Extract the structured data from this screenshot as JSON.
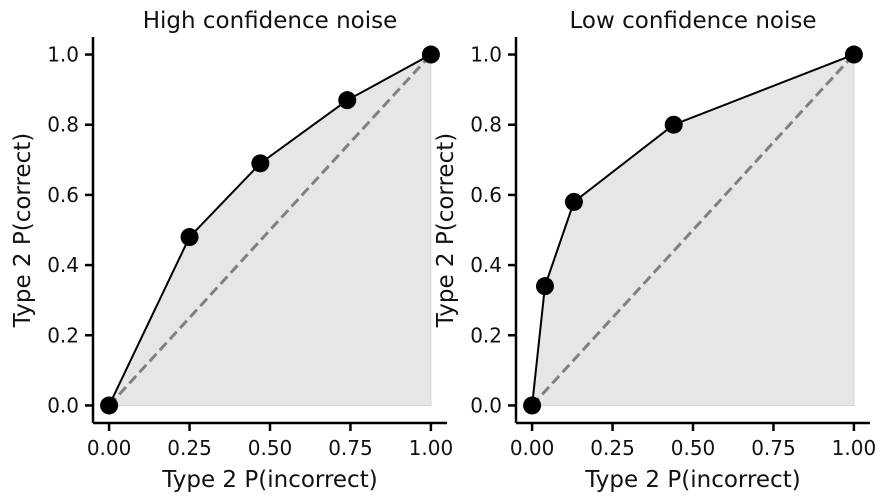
{
  "chart_data": [
    {
      "type": "line",
      "title": "High confidence noise",
      "xlabel": "Type 2 P(incorrect)",
      "ylabel": "Type 2 P(correct)",
      "xlim": [
        -0.05,
        1.05
      ],
      "ylim": [
        -0.05,
        1.05
      ],
      "xticks": [
        "0.00",
        "0.25",
        "0.50",
        "0.75",
        "1.00"
      ],
      "yticks": [
        "0.0",
        "0.2",
        "0.4",
        "0.6",
        "0.8",
        "1.0"
      ],
      "grid": false,
      "series": [
        {
          "x": [
            0.0,
            0.25,
            0.47,
            0.74,
            1.0
          ],
          "y": [
            0.0,
            0.48,
            0.69,
            0.87,
            1.0
          ]
        }
      ],
      "chance_line": {
        "x": [
          0,
          1
        ],
        "y": [
          0,
          1
        ]
      }
    },
    {
      "type": "line",
      "title": "Low confidence noise",
      "xlabel": "Type 2 P(incorrect)",
      "ylabel": "Type 2 P(correct)",
      "xlim": [
        -0.05,
        1.05
      ],
      "ylim": [
        -0.05,
        1.05
      ],
      "xticks": [
        "0.00",
        "0.25",
        "0.50",
        "0.75",
        "1.00"
      ],
      "yticks": [
        "0.0",
        "0.2",
        "0.4",
        "0.6",
        "0.8",
        "1.0"
      ],
      "grid": false,
      "series": [
        {
          "x": [
            0.0,
            0.04,
            0.13,
            0.44,
            1.0
          ],
          "y": [
            0.0,
            0.34,
            0.58,
            0.8,
            1.0
          ]
        }
      ],
      "chance_line": {
        "x": [
          0,
          1
        ],
        "y": [
          0,
          1
        ]
      }
    }
  ],
  "colors": {
    "curve": "#000000",
    "marker": "#000000",
    "chance": "#808080",
    "fill": "#e6e6e6",
    "axis": "#000000"
  }
}
